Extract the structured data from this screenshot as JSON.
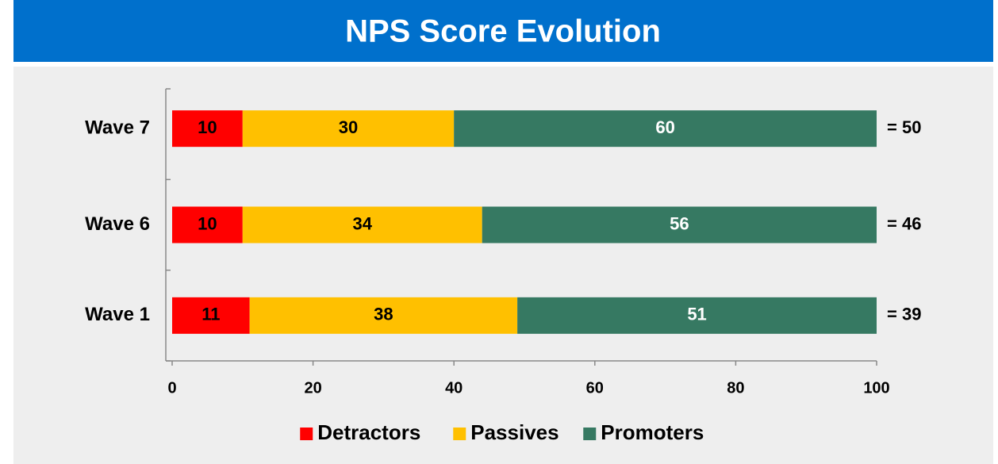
{
  "chart_data": {
    "type": "stacked_barh",
    "title": "NPS Score Evolution",
    "categories": [
      "Wave 7",
      "Wave 6",
      "Wave 1"
    ],
    "series": [
      {
        "name": "Detractors",
        "color": "#ff0000",
        "label_color": "#000000",
        "values": [
          10,
          10,
          11
        ]
      },
      {
        "name": "Passives",
        "color": "#ffc000",
        "label_color": "#000000",
        "values": [
          30,
          34,
          38
        ]
      },
      {
        "name": "Promoters",
        "color": "#367962",
        "label_color": "#ffffff",
        "values": [
          60,
          56,
          51
        ]
      }
    ],
    "annotations": [
      "= 50",
      "= 46",
      "= 39"
    ],
    "xlim": [
      0,
      100
    ],
    "xticks": [
      0,
      20,
      40,
      60,
      80,
      100
    ],
    "legend": "bottom",
    "grid": false
  }
}
